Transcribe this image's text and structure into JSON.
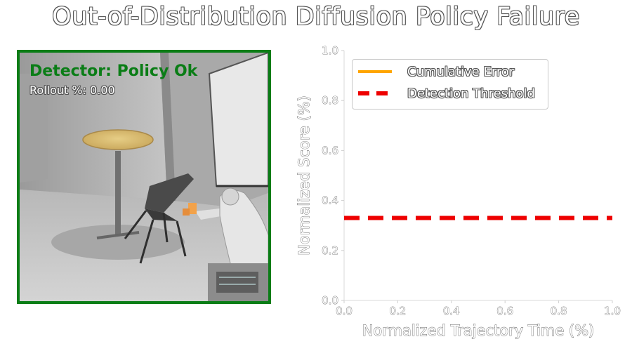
{
  "figure": {
    "title": "Out-of-Distribution Diffusion Policy Failure"
  },
  "video_panel": {
    "status_text": "Detector: Policy Ok",
    "status_color": "#0a7d16",
    "rollout_text": "Rollout %: 0.00",
    "border_color": "#0a7d16"
  },
  "chart_data": {
    "type": "line",
    "xlabel": "Normalized Trajectory Time (%)",
    "ylabel": "Normalized Score (%)",
    "xlim": [
      0.0,
      1.0
    ],
    "ylim": [
      0.0,
      1.0
    ],
    "x_ticks": [
      "0.0",
      "0.2",
      "0.4",
      "0.6",
      "0.8",
      "1.0"
    ],
    "y_ticks": [
      "0.0",
      "0.2",
      "0.4",
      "0.6",
      "0.8",
      "1.0"
    ],
    "grid": false,
    "legend_position": "top-left",
    "series": [
      {
        "name": "Cumulative Error",
        "style": "solid",
        "color": "#ffa500",
        "x": [],
        "y": []
      },
      {
        "name": "Detection Threshold",
        "style": "dashed",
        "color": "#ee0000",
        "x": [
          0.0,
          1.0
        ],
        "y": [
          0.33,
          0.33
        ]
      }
    ]
  }
}
